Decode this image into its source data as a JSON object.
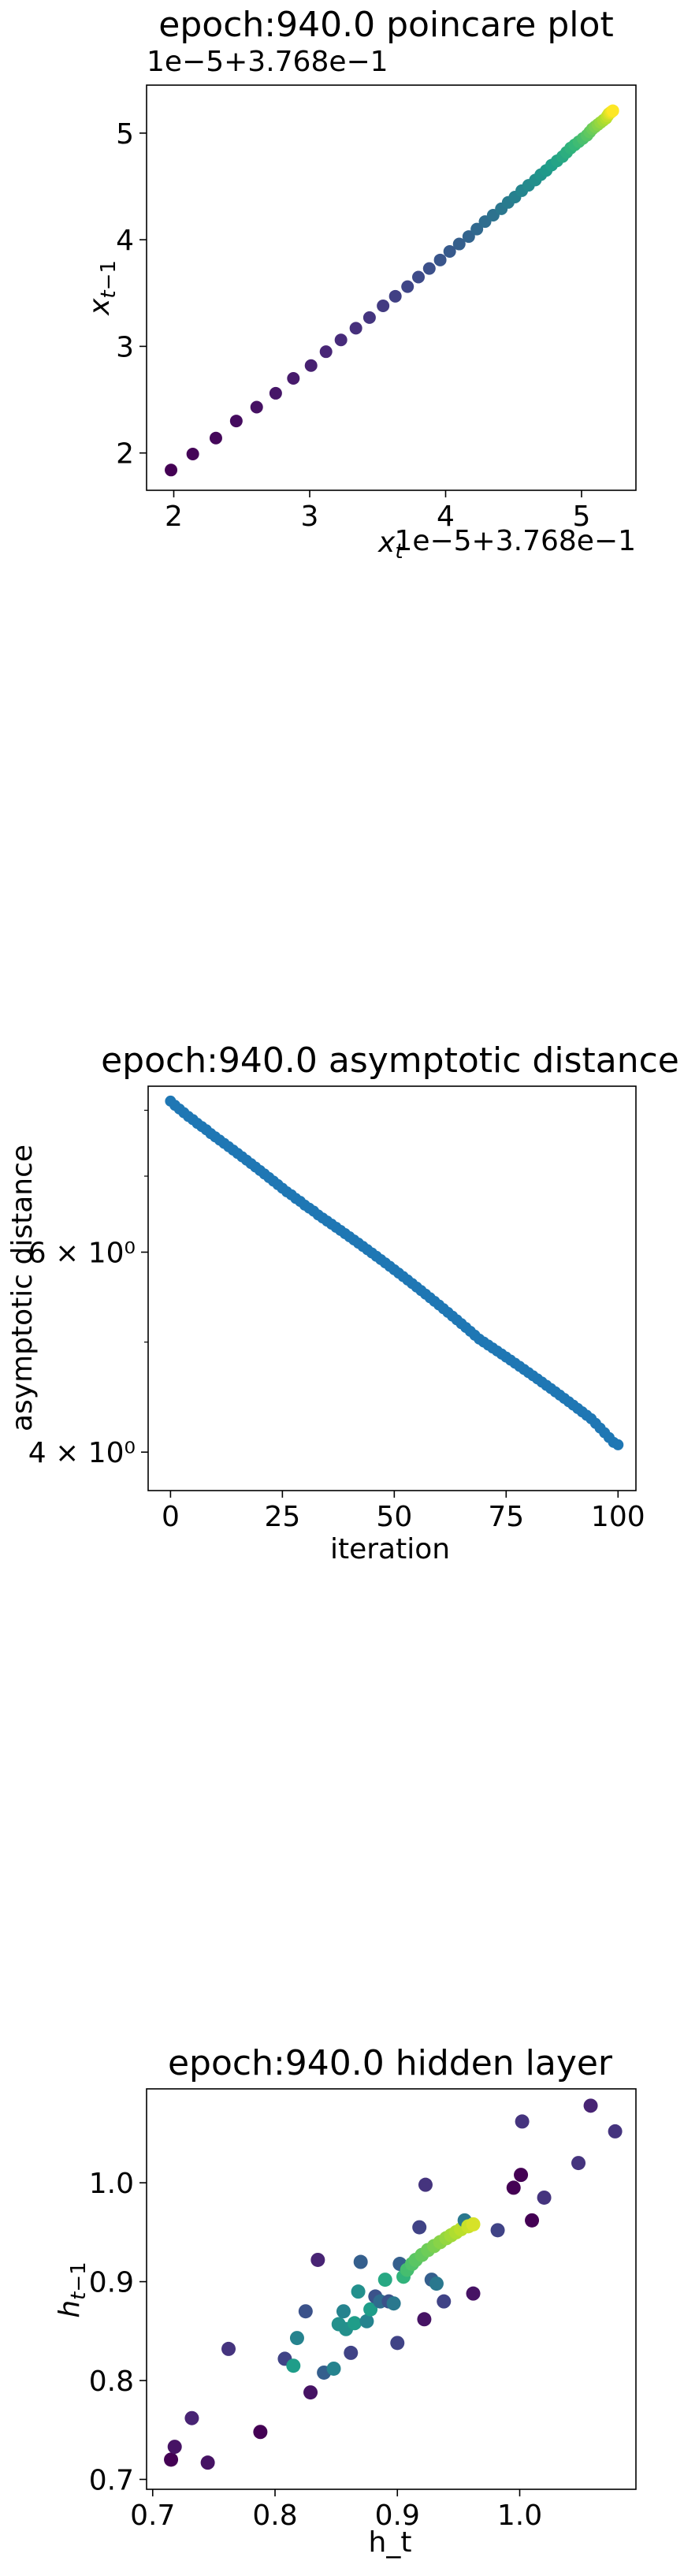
{
  "chart_data": [
    {
      "type": "scatter",
      "title": "epoch:940.0 poincare plot",
      "xlabel": "x_t",
      "ylabel": "x_{t-1}",
      "x_offset_text": "1e−5+3.768e−1",
      "y_offset_text": "1e−5+3.768e−1",
      "xlim": [
        1.8,
        5.4
      ],
      "ylim": [
        1.65,
        5.45
      ],
      "xticks": [
        {
          "v": 2,
          "label": "2"
        },
        {
          "v": 3,
          "label": "3"
        },
        {
          "v": 4,
          "label": "4"
        },
        {
          "v": 5,
          "label": "5"
        }
      ],
      "yticks": [
        {
          "v": 2,
          "label": "2"
        },
        {
          "v": 3,
          "label": "3"
        },
        {
          "v": 4,
          "label": "4"
        },
        {
          "v": 5,
          "label": "5"
        }
      ],
      "points": [
        [
          1.98,
          1.84
        ],
        [
          2.14,
          1.99
        ],
        [
          2.31,
          2.14
        ],
        [
          2.46,
          2.3
        ],
        [
          2.61,
          2.43
        ],
        [
          2.75,
          2.56
        ],
        [
          2.88,
          2.7
        ],
        [
          3.01,
          2.82
        ],
        [
          3.12,
          2.95
        ],
        [
          3.23,
          3.06
        ],
        [
          3.34,
          3.17
        ],
        [
          3.44,
          3.27
        ],
        [
          3.54,
          3.38
        ],
        [
          3.63,
          3.47
        ],
        [
          3.72,
          3.56
        ],
        [
          3.8,
          3.65
        ],
        [
          3.88,
          3.73
        ],
        [
          3.96,
          3.81
        ],
        [
          4.03,
          3.89
        ],
        [
          4.1,
          3.96
        ],
        [
          4.17,
          4.03
        ],
        [
          4.23,
          4.1
        ],
        [
          4.29,
          4.17
        ],
        [
          4.35,
          4.23
        ],
        [
          4.41,
          4.29
        ],
        [
          4.46,
          4.35
        ],
        [
          4.51,
          4.4
        ],
        [
          4.56,
          4.46
        ],
        [
          4.61,
          4.51
        ],
        [
          4.66,
          4.56
        ],
        [
          4.7,
          4.61
        ],
        [
          4.74,
          4.65
        ],
        [
          4.78,
          4.7
        ],
        [
          4.82,
          4.74
        ],
        [
          4.86,
          4.78
        ],
        [
          4.89,
          4.82
        ],
        [
          4.92,
          4.86
        ],
        [
          4.95,
          4.89
        ],
        [
          4.98,
          4.92
        ],
        [
          5.01,
          4.95
        ],
        [
          5.04,
          4.98
        ],
        [
          5.06,
          5.01
        ],
        [
          5.08,
          5.04
        ],
        [
          5.1,
          5.06
        ],
        [
          5.12,
          5.08
        ],
        [
          5.14,
          5.1
        ],
        [
          5.16,
          5.12
        ],
        [
          5.18,
          5.14
        ],
        [
          5.19,
          5.16
        ],
        [
          5.2,
          5.18
        ],
        [
          5.21,
          5.19
        ],
        [
          5.22,
          5.2
        ],
        [
          5.23,
          5.21
        ]
      ],
      "colormap": "viridis"
    },
    {
      "type": "line",
      "title": "epoch:940.0 asymptotic distance",
      "xlabel": "iteration",
      "ylabel": "asymptotic distance",
      "y_scale": "log",
      "xlim": [
        -5,
        104
      ],
      "ylim": [
        3.7,
        8.4
      ],
      "xticks": [
        {
          "v": 0,
          "label": "0"
        },
        {
          "v": 25,
          "label": "25"
        },
        {
          "v": 50,
          "label": "50"
        },
        {
          "v": 75,
          "label": "75"
        },
        {
          "v": 100,
          "label": "100"
        }
      ],
      "yticks": [
        {
          "v": 4,
          "label": "4 × 10⁰"
        },
        {
          "v": 6,
          "label": "6 × 10⁰"
        }
      ],
      "minor_yticks": [
        5,
        7,
        8
      ],
      "series": [
        {
          "color": "#1f77b4",
          "x_start": 0,
          "x_step": 1,
          "values": [
            8.15,
            8.08,
            8.02,
            7.96,
            7.9,
            7.85,
            7.79,
            7.74,
            7.69,
            7.63,
            7.58,
            7.53,
            7.48,
            7.43,
            7.38,
            7.33,
            7.28,
            7.23,
            7.18,
            7.13,
            7.08,
            7.03,
            6.98,
            6.93,
            6.88,
            6.83,
            6.78,
            6.74,
            6.69,
            6.65,
            6.6,
            6.56,
            6.52,
            6.47,
            6.43,
            6.39,
            6.35,
            6.31,
            6.27,
            6.23,
            6.19,
            6.15,
            6.11,
            6.07,
            6.03,
            5.99,
            5.95,
            5.91,
            5.87,
            5.83,
            5.79,
            5.75,
            5.71,
            5.67,
            5.63,
            5.59,
            5.55,
            5.51,
            5.47,
            5.43,
            5.39,
            5.35,
            5.31,
            5.27,
            5.23,
            5.19,
            5.15,
            5.11,
            5.07,
            5.03,
            5.0,
            4.97,
            4.94,
            4.91,
            4.88,
            4.85,
            4.82,
            4.79,
            4.76,
            4.73,
            4.7,
            4.67,
            4.64,
            4.61,
            4.58,
            4.55,
            4.52,
            4.49,
            4.46,
            4.43,
            4.4,
            4.37,
            4.34,
            4.31,
            4.28,
            4.24,
            4.2,
            4.16,
            4.12,
            4.08,
            4.06
          ]
        }
      ]
    },
    {
      "type": "scatter",
      "title": "epoch:940.0 hidden layer",
      "xlabel": "h_t",
      "ylabel": "h_{t-1}",
      "xlim": [
        0.695,
        1.095
      ],
      "ylim": [
        0.69,
        1.095
      ],
      "xticks": [
        {
          "v": 0.7,
          "label": "0.7"
        },
        {
          "v": 0.8,
          "label": "0.8"
        },
        {
          "v": 0.9,
          "label": "0.9"
        },
        {
          "v": 1.0,
          "label": "1.0"
        }
      ],
      "yticks": [
        {
          "v": 0.7,
          "label": "0.7"
        },
        {
          "v": 0.8,
          "label": "0.8"
        },
        {
          "v": 0.9,
          "label": "0.9"
        },
        {
          "v": 1.0,
          "label": "1.0"
        }
      ],
      "colormap": "viridis",
      "points": [
        [
          0.715,
          0.72,
          0.0
        ],
        [
          0.718,
          0.733,
          0.05
        ],
        [
          0.732,
          0.762,
          0.1
        ],
        [
          0.745,
          0.717,
          0.05
        ],
        [
          0.762,
          0.832,
          0.15
        ],
        [
          0.788,
          0.748,
          0.0
        ],
        [
          0.808,
          0.822,
          0.2
        ],
        [
          0.815,
          0.815,
          0.55
        ],
        [
          0.818,
          0.843,
          0.45
        ],
        [
          0.825,
          0.87,
          0.25
        ],
        [
          0.829,
          0.788,
          0.05
        ],
        [
          0.835,
          0.922,
          0.1
        ],
        [
          0.84,
          0.808,
          0.3
        ],
        [
          0.848,
          0.812,
          0.45
        ],
        [
          0.852,
          0.857,
          0.5
        ],
        [
          0.856,
          0.87,
          0.45
        ],
        [
          0.858,
          0.852,
          0.5
        ],
        [
          0.862,
          0.828,
          0.2
        ],
        [
          0.865,
          0.858,
          0.55
        ],
        [
          0.868,
          0.89,
          0.5
        ],
        [
          0.87,
          0.92,
          0.3
        ],
        [
          0.875,
          0.86,
          0.45
        ],
        [
          0.878,
          0.872,
          0.55
        ],
        [
          0.882,
          0.885,
          0.25
        ],
        [
          0.886,
          0.88,
          0.35
        ],
        [
          0.89,
          0.902,
          0.6
        ],
        [
          0.893,
          0.88,
          0.25
        ],
        [
          0.897,
          0.878,
          0.4
        ],
        [
          0.9,
          0.838,
          0.2
        ],
        [
          0.902,
          0.918,
          0.3
        ],
        [
          0.905,
          0.905,
          0.65
        ],
        [
          0.908,
          0.912,
          0.7
        ],
        [
          0.912,
          0.918,
          0.72
        ],
        [
          0.915,
          0.922,
          0.74
        ],
        [
          0.918,
          0.955,
          0.2
        ],
        [
          0.92,
          0.927,
          0.76
        ],
        [
          0.922,
          0.862,
          0.05
        ],
        [
          0.923,
          0.998,
          0.15
        ],
        [
          0.925,
          0.932,
          0.78
        ],
        [
          0.928,
          0.902,
          0.3
        ],
        [
          0.93,
          0.936,
          0.8
        ],
        [
          0.932,
          0.898,
          0.4
        ],
        [
          0.935,
          0.94,
          0.82
        ],
        [
          0.938,
          0.88,
          0.2
        ],
        [
          0.94,
          0.944,
          0.84
        ],
        [
          0.944,
          0.947,
          0.86
        ],
        [
          0.948,
          0.95,
          0.88
        ],
        [
          0.952,
          0.953,
          0.9
        ],
        [
          0.955,
          0.962,
          0.4
        ],
        [
          0.958,
          0.956,
          0.92
        ],
        [
          0.962,
          0.958,
          0.94
        ],
        [
          0.962,
          0.888,
          0.05
        ],
        [
          0.982,
          0.952,
          0.2
        ],
        [
          0.995,
          0.995,
          0.0
        ],
        [
          1.001,
          1.008,
          0.0
        ],
        [
          1.002,
          1.062,
          0.15
        ],
        [
          1.01,
          0.962,
          0.0
        ],
        [
          1.02,
          0.985,
          0.15
        ],
        [
          1.048,
          1.02,
          0.15
        ],
        [
          1.058,
          1.078,
          0.1
        ],
        [
          1.078,
          1.052,
          0.15
        ]
      ]
    }
  ]
}
